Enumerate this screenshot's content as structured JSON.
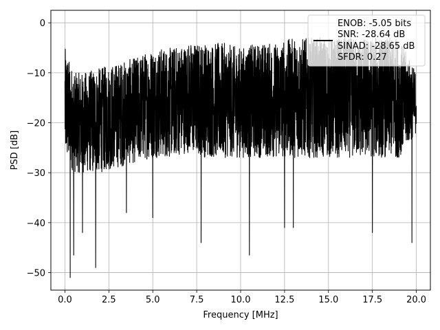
{
  "chart_data": {
    "type": "line",
    "title": "",
    "xlabel": "Frequency [MHz]",
    "ylabel": "PSD [dB]",
    "xlim": [
      -0.8,
      20.8
    ],
    "ylim": [
      -53.5,
      2.5
    ],
    "xticks": [
      0.0,
      2.5,
      5.0,
      7.5,
      10.0,
      12.5,
      15.0,
      17.5,
      20.0
    ],
    "xtick_labels": [
      "0.0",
      "2.5",
      "5.0",
      "7.5",
      "10.0",
      "12.5",
      "15.0",
      "17.5",
      "20.0"
    ],
    "yticks": [
      0,
      -10,
      -20,
      -30,
      -40,
      -50
    ],
    "ytick_labels": [
      "0",
      "−10",
      "−20",
      "−30",
      "−40",
      "−50"
    ],
    "grid": true,
    "legend_position": "top-right",
    "legend_lines": [
      "ENOB: -5.05 bits",
      "SNR: -28.64 dB",
      "SINAD: -28.65 dB",
      "SFDR: 0.27"
    ],
    "series": [
      {
        "color": "#000000",
        "x_range": [
          0.0,
          20.0
        ],
        "x_approx": [
          0.0,
          0.5,
          1.0,
          2.0,
          3.0,
          4.0,
          5.0,
          6.0,
          7.0,
          8.0,
          9.0,
          10.0,
          11.0,
          12.0,
          13.0,
          14.0,
          15.0,
          16.0,
          17.0,
          18.0,
          19.0,
          20.0
        ],
        "upper_envelope_approx": [
          -5,
          -10,
          -10,
          -9,
          -8,
          -7,
          -5,
          -5,
          -4,
          -4,
          -4,
          -5,
          -4,
          -4,
          -3,
          -3,
          -3,
          -3,
          -3,
          -3,
          -3,
          -10
        ],
        "lower_envelope_approx": [
          -27,
          -30,
          -30,
          -30,
          -29,
          -28,
          -27,
          -27,
          -26,
          -27,
          -27,
          -27,
          -27,
          -27,
          -27,
          -27,
          -27,
          -27,
          -27,
          -27,
          -27,
          -22
        ],
        "notable_dips": [
          {
            "x": 0.3,
            "y": -51
          },
          {
            "x": 0.5,
            "y": -46.5
          },
          {
            "x": 1.0,
            "y": -42
          },
          {
            "x": 1.75,
            "y": -49
          },
          {
            "x": 3.5,
            "y": -38
          },
          {
            "x": 5.0,
            "y": -39
          },
          {
            "x": 7.75,
            "y": -44
          },
          {
            "x": 10.5,
            "y": -46.5
          },
          {
            "x": 12.5,
            "y": -41
          },
          {
            "x": 13.0,
            "y": -41
          },
          {
            "x": 17.5,
            "y": -42
          },
          {
            "x": 19.75,
            "y": -44
          }
        ]
      }
    ]
  }
}
